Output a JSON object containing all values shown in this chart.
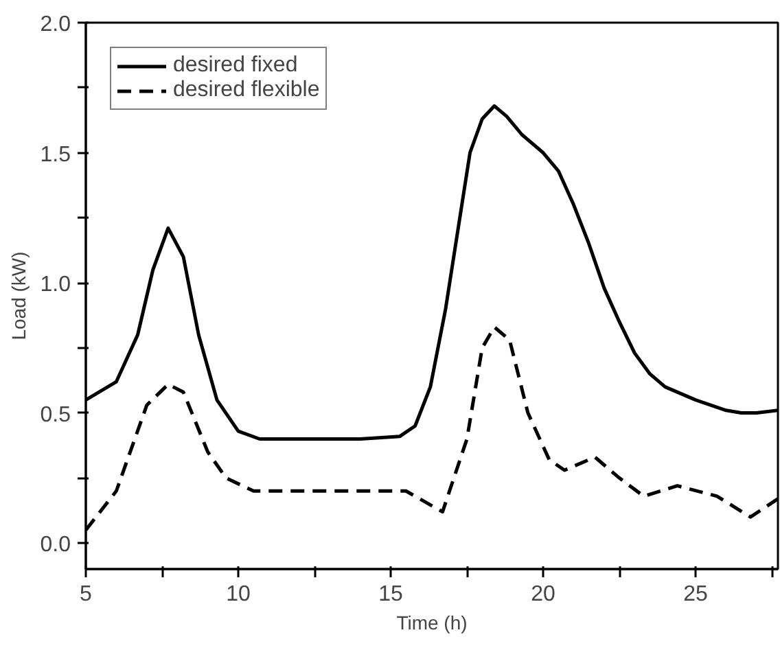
{
  "chart_data": {
    "type": "line",
    "xlabel": "Time (h)",
    "ylabel": "Load (kW)",
    "xlim": [
      5,
      27.7
    ],
    "ylim": [
      -0.1,
      2.0
    ],
    "xticks": [
      5,
      {
        "value": 7.5,
        "label": null
      },
      10,
      {
        "value": 12.5,
        "label": null
      },
      15,
      {
        "value": 17.5,
        "label": null
      },
      20,
      {
        "value": 22.5,
        "label": null
      },
      25,
      {
        "value": 27.5,
        "label": null
      }
    ],
    "yticks": [
      {
        "value": 0,
        "label": "0.0"
      },
      {
        "value": 0.25,
        "label": null
      },
      0.5,
      {
        "value": 0.75,
        "label": null
      },
      {
        "value": 1,
        "label": "1.0"
      },
      {
        "value": 1.25,
        "label": null
      },
      1.5,
      {
        "value": 1.75,
        "label": null
      },
      {
        "value": 2,
        "label": "2.0"
      }
    ],
    "grid": false,
    "legend": "top left",
    "series": [
      {
        "name": "desired fixed",
        "color": "#000000",
        "line_style": "solid",
        "x": [
          5,
          6,
          6.7,
          7.2,
          7.7,
          8.2,
          8.7,
          9.3,
          10,
          10.7,
          12,
          14,
          15.3,
          15.8,
          16.3,
          16.8,
          17.2,
          17.6,
          18.0,
          18.4,
          18.8,
          19.3,
          20,
          20.5,
          21,
          21.5,
          22,
          22.5,
          23,
          23.5,
          24,
          25,
          26,
          26.5,
          27,
          27.7
        ],
        "values": [
          0.55,
          0.62,
          0.8,
          1.05,
          1.21,
          1.1,
          0.8,
          0.55,
          0.43,
          0.4,
          0.4,
          0.4,
          0.41,
          0.45,
          0.6,
          0.9,
          1.2,
          1.5,
          1.63,
          1.68,
          1.64,
          1.57,
          1.5,
          1.43,
          1.3,
          1.15,
          0.98,
          0.85,
          0.73,
          0.65,
          0.6,
          0.55,
          0.51,
          0.5,
          0.5,
          0.51
        ]
      },
      {
        "name": "desired flexible",
        "color": "#000000",
        "line_style": "dashed",
        "x": [
          5,
          6,
          7,
          7.7,
          8.2,
          9,
          9.6,
          10.5,
          15.5,
          16.7,
          17.5,
          18,
          18.4,
          18.9,
          19.5,
          20.2,
          20.7,
          21.7,
          22.5,
          23.3,
          24.4,
          25.7,
          26.8,
          27.7
        ],
        "values": [
          0.05,
          0.2,
          0.53,
          0.61,
          0.58,
          0.35,
          0.25,
          0.2,
          0.2,
          0.12,
          0.4,
          0.75,
          0.83,
          0.78,
          0.5,
          0.32,
          0.28,
          0.33,
          0.25,
          0.18,
          0.22,
          0.18,
          0.1,
          0.17
        ]
      }
    ]
  }
}
